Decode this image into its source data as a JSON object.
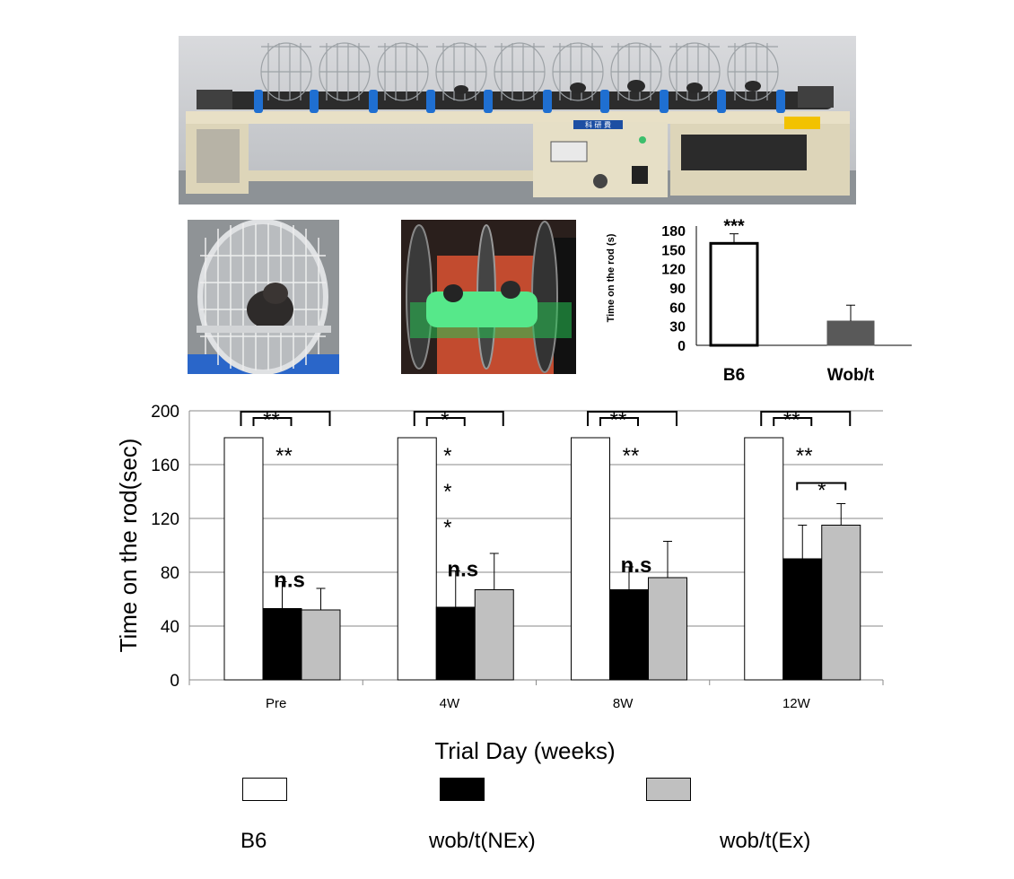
{
  "images": {
    "apparatus_photo": "rotating-cage-apparatus-photo",
    "cage_photo": "mouse-in-wheel-cage-photo",
    "rotarod_photo": "mice-on-green-rotarod-photo",
    "apparatus_sign": "科 研 費"
  },
  "chart_data": [
    {
      "type": "bar",
      "title": "",
      "xlabel": "",
      "ylabel": "Time on the rod (s)",
      "categories": [
        "B6",
        "Wob/t"
      ],
      "values": [
        160,
        38
      ],
      "errors": [
        15,
        25
      ],
      "ylim": [
        0,
        190
      ],
      "yticks": [
        0,
        30,
        60,
        90,
        120,
        150,
        180
      ],
      "bar_colors": [
        "#ffffff",
        "#595959"
      ],
      "significance": "***",
      "grid": false
    },
    {
      "type": "bar",
      "title": "",
      "xlabel": "Trial Day (weeks)",
      "ylabel": "Time on the rod(sec)",
      "categories": [
        "Pre",
        "4W",
        "8W",
        "12W"
      ],
      "series": [
        {
          "name": "B6",
          "values": [
            180,
            180,
            180,
            180
          ],
          "errors": [
            0,
            0,
            0,
            0
          ],
          "color": "#ffffff"
        },
        {
          "name": "wob/t(NEx)",
          "values": [
            53,
            54,
            67,
            90
          ],
          "errors": [
            20,
            27,
            17,
            25
          ],
          "color": "#000000"
        },
        {
          "name": "wob/t(Ex)",
          "values": [
            52,
            67,
            76,
            115
          ],
          "errors": [
            16,
            27,
            27,
            16
          ],
          "color": "#c0c0c0"
        }
      ],
      "ylim": [
        0,
        200
      ],
      "yticks": [
        0,
        40,
        80,
        120,
        160,
        200
      ],
      "grid": true,
      "legend_position": "bottom",
      "annotations": {
        "outer_bracket": [
          "**",
          "*",
          "**",
          "**"
        ],
        "inner_bracket": [
          "**",
          "*",
          "**",
          "**"
        ],
        "b6_vs_nex": [
          "**",
          "* * *",
          "**",
          "**"
        ],
        "nex_vs_ex": [
          "n.s",
          "n.s",
          "n.s",
          "*"
        ]
      }
    }
  ]
}
